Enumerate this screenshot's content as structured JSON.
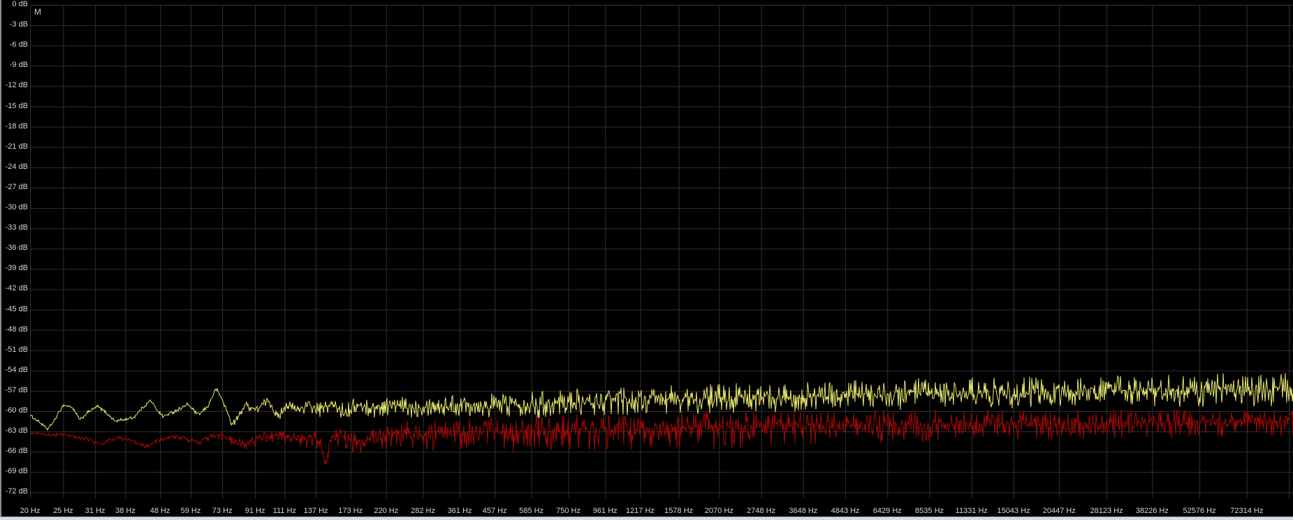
{
  "window": {
    "marker_label": "M"
  },
  "colors": {
    "background": "#000000",
    "grid": "#313131",
    "axis_text": "#d6d6d6",
    "primary_trace": "#e9e96f",
    "secondary_trace": "#a50808",
    "window_left_border": "#8f8f8f",
    "window_bottom_border": "#d7d9e7"
  },
  "chart_data": {
    "type": "line",
    "title": "",
    "legend": "none",
    "grid": true,
    "x_axis": {
      "scale": "log",
      "unit": "Hz",
      "range_hz": [
        20,
        99000
      ],
      "tick_freqs": [
        20,
        25,
        31,
        38,
        48,
        59,
        73,
        91,
        111,
        137,
        173,
        220,
        282,
        361,
        457,
        585,
        750,
        961,
        1217,
        1578,
        2070,
        2748,
        3648,
        4843,
        6429,
        8535,
        11331,
        15043,
        20447,
        28123,
        38226,
        52576,
        72314
      ],
      "tick_labels": [
        "20 Hz",
        "25 Hz",
        "31 Hz",
        "38 Hz",
        "48 Hz",
        "59 Hz",
        "73 Hz",
        "91 Hz",
        "111 Hz",
        "137 Hz",
        "173 Hz",
        "220 Hz",
        "282 Hz",
        "361 Hz",
        "457 Hz",
        "585 Hz",
        "750 Hz",
        "961 Hz",
        "1217 Hz",
        "1578 Hz",
        "2070 Hz",
        "2748 Hz",
        "3648 Hz",
        "4843 Hz",
        "6429 Hz",
        "8535 Hz",
        "11331 Hz",
        "15043 Hz",
        "20447 Hz",
        "28123 Hz",
        "38226 Hz",
        "52576 Hz",
        "72314 Hz"
      ],
      "extra_gridline_freqs": [
        96000
      ]
    },
    "y_axis": {
      "unit": "dB",
      "range_db": [
        0,
        -72
      ],
      "tick_db": [
        0,
        -3,
        -6,
        -9,
        -12,
        -15,
        -18,
        -21,
        -24,
        -27,
        -30,
        -33,
        -36,
        -39,
        -42,
        -45,
        -48,
        -51,
        -54,
        -57,
        -60,
        -63,
        -66,
        -69,
        -72
      ],
      "tick_labels": [
        "0 dB",
        "-3 dB",
        "-6 dB",
        "-9 dB",
        "-12 dB",
        "-15 dB",
        "-18 dB",
        "-21 dB",
        "-24 dB",
        "-27 dB",
        "-30 dB",
        "-33 dB",
        "-36 dB",
        "-39 dB",
        "-42 dB",
        "-45 dB",
        "-48 dB",
        "-51 dB",
        "-54 dB",
        "-57 dB",
        "-60 dB",
        "-63 dB",
        "-66 dB",
        "-69 dB",
        "-72 dB"
      ]
    },
    "series": [
      {
        "name": "spectrum-secondary",
        "color": "#a50808",
        "seed": 5678,
        "negative_bias": 1.25,
        "envelope_db": [
          [
            19,
            -63.1
          ],
          [
            21,
            -63.3
          ],
          [
            23,
            -63.5
          ],
          [
            25,
            -63.4
          ],
          [
            27,
            -63.8
          ],
          [
            30,
            -64.2
          ],
          [
            32,
            -64.9
          ],
          [
            34,
            -64.3
          ],
          [
            36,
            -63.9
          ],
          [
            38,
            -64.1
          ],
          [
            41,
            -64.6
          ],
          [
            44,
            -65.2
          ],
          [
            47,
            -64.4
          ],
          [
            50,
            -64.0
          ],
          [
            54,
            -63.7
          ],
          [
            58,
            -64.2
          ],
          [
            62,
            -64.6
          ],
          [
            66,
            -64.0
          ],
          [
            70,
            -63.5
          ],
          [
            75,
            -64.0
          ],
          [
            80,
            -64.5
          ],
          [
            86,
            -65.0
          ],
          [
            92,
            -64.2
          ],
          [
            98,
            -63.7
          ],
          [
            105,
            -63.4
          ],
          [
            115,
            -64.0
          ],
          [
            125,
            -64.3
          ],
          [
            134,
            -63.8
          ],
          [
            141,
            -64.2
          ],
          [
            146,
            -68.5
          ],
          [
            151,
            -64.0
          ],
          [
            160,
            -63.6
          ],
          [
            175,
            -64.3
          ],
          [
            190,
            -64.6
          ],
          [
            205,
            -63.4
          ],
          [
            225,
            -63.9
          ],
          [
            250,
            -63.3
          ],
          [
            280,
            -63.6
          ],
          [
            320,
            -63.1
          ],
          [
            370,
            -63.4
          ],
          [
            430,
            -63.0
          ],
          [
            500,
            -63.3
          ],
          [
            590,
            -62.9
          ],
          [
            700,
            -63.1
          ],
          [
            830,
            -62.7
          ],
          [
            1000,
            -62.9
          ],
          [
            1200,
            -62.5
          ],
          [
            1450,
            -62.7
          ],
          [
            1750,
            -62.4
          ],
          [
            2100,
            -62.6
          ],
          [
            2600,
            -62.2
          ],
          [
            3200,
            -62.4
          ],
          [
            3900,
            -62.1
          ],
          [
            4800,
            -62.3
          ],
          [
            5900,
            -62.0
          ],
          [
            7300,
            -62.2
          ],
          [
            9000,
            -61.9
          ],
          [
            11000,
            -62.1
          ],
          [
            13500,
            -61.8
          ],
          [
            16500,
            -62.0
          ],
          [
            20500,
            -61.7
          ],
          [
            25000,
            -61.9
          ],
          [
            31000,
            -61.6
          ],
          [
            38000,
            -61.8
          ],
          [
            47000,
            -61.5
          ],
          [
            58000,
            -61.7
          ],
          [
            72000,
            -61.4
          ],
          [
            88000,
            -61.6
          ],
          [
            99000,
            -61.5
          ]
        ],
        "noise_amp_db": [
          [
            19,
            0.15
          ],
          [
            60,
            0.25
          ],
          [
            100,
            0.6
          ],
          [
            150,
            0.9
          ],
          [
            250,
            1.3
          ],
          [
            450,
            1.6
          ],
          [
            900,
            1.7
          ],
          [
            2000,
            1.7
          ],
          [
            5000,
            1.5
          ],
          [
            12000,
            1.4
          ],
          [
            30000,
            1.3
          ],
          [
            99000,
            1.3
          ]
        ]
      },
      {
        "name": "spectrum-primary",
        "color": "#e9e96f",
        "seed": 1234,
        "negative_bias": 1.0,
        "envelope_db": [
          [
            19,
            -60.3
          ],
          [
            20,
            -60.6
          ],
          [
            21.5,
            -61.8
          ],
          [
            22.5,
            -62.7
          ],
          [
            23.5,
            -61.5
          ],
          [
            25,
            -59.1
          ],
          [
            26.5,
            -59.4
          ],
          [
            28,
            -61.3
          ],
          [
            29.5,
            -60.2
          ],
          [
            31.5,
            -59.3
          ],
          [
            33,
            -60.0
          ],
          [
            35.5,
            -61.5
          ],
          [
            38,
            -61.2
          ],
          [
            40,
            -61.0
          ],
          [
            42.5,
            -59.6
          ],
          [
            45,
            -58.4
          ],
          [
            47,
            -59.8
          ],
          [
            49,
            -60.8
          ],
          [
            52,
            -60.2
          ],
          [
            55,
            -59.6
          ],
          [
            58,
            -59.0
          ],
          [
            62,
            -60.6
          ],
          [
            66,
            -59.4
          ],
          [
            70,
            -56.7
          ],
          [
            73,
            -58.3
          ],
          [
            78,
            -62.0
          ],
          [
            82,
            -60.6
          ],
          [
            85,
            -59.0
          ],
          [
            88,
            -59.4
          ],
          [
            92,
            -59.8
          ],
          [
            96,
            -59.0
          ],
          [
            100,
            -58.4
          ],
          [
            106,
            -61.0
          ],
          [
            112,
            -59.0
          ],
          [
            120,
            -59.8
          ],
          [
            130,
            -59.2
          ],
          [
            140,
            -59.9
          ],
          [
            152,
            -59.0
          ],
          [
            165,
            -60.1
          ],
          [
            180,
            -59.2
          ],
          [
            200,
            -59.6
          ],
          [
            225,
            -59.1
          ],
          [
            255,
            -59.5
          ],
          [
            290,
            -59.0
          ],
          [
            330,
            -59.3
          ],
          [
            380,
            -58.9
          ],
          [
            440,
            -59.2
          ],
          [
            520,
            -58.8
          ],
          [
            620,
            -59.0
          ],
          [
            740,
            -58.6
          ],
          [
            880,
            -58.8
          ],
          [
            1050,
            -58.4
          ],
          [
            1250,
            -58.6
          ],
          [
            1500,
            -58.2
          ],
          [
            1800,
            -58.4
          ],
          [
            2200,
            -58.0
          ],
          [
            2700,
            -58.2
          ],
          [
            3300,
            -57.8
          ],
          [
            4000,
            -57.9
          ],
          [
            5000,
            -57.6
          ],
          [
            6200,
            -57.8
          ],
          [
            7600,
            -57.4
          ],
          [
            9400,
            -57.6
          ],
          [
            11500,
            -57.3
          ],
          [
            14000,
            -57.5
          ],
          [
            17500,
            -57.2
          ],
          [
            21500,
            -57.3
          ],
          [
            26500,
            -57.0
          ],
          [
            33000,
            -57.2
          ],
          [
            40000,
            -56.9
          ],
          [
            50000,
            -57.1
          ],
          [
            62000,
            -56.8
          ],
          [
            78000,
            -57.0
          ],
          [
            99000,
            -56.7
          ]
        ],
        "noise_amp_db": [
          [
            19,
            0.15
          ],
          [
            60,
            0.2
          ],
          [
            100,
            0.5
          ],
          [
            150,
            0.8
          ],
          [
            250,
            1.1
          ],
          [
            450,
            1.3
          ],
          [
            900,
            1.4
          ],
          [
            2000,
            1.5
          ],
          [
            5000,
            1.5
          ],
          [
            12000,
            1.6
          ],
          [
            30000,
            1.6
          ],
          [
            99000,
            1.7
          ]
        ]
      }
    ]
  }
}
